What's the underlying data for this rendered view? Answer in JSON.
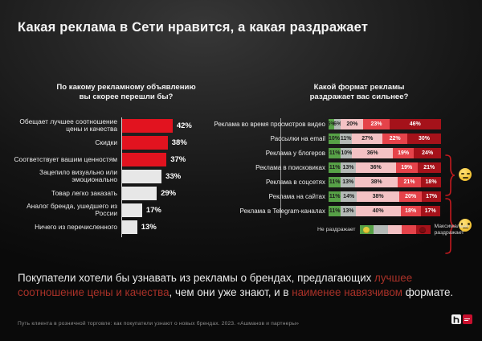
{
  "page_title": "Какая реклама в Сети нравится, а какая раздражает",
  "chart_data": [
    {
      "type": "bar",
      "orientation": "horizontal",
      "title": "По какому рекламному объявлению вы скорее перешли бы?",
      "title_lines": [
        "По какому рекламному объявлению",
        "вы скорее перешли бы?"
      ],
      "unit": "%",
      "categories": [
        "Обещает лучшее соотношение цены и качества",
        "Скидки",
        "Соответствует вашим ценностям",
        "Зацепило визуально или эмоционально",
        "Товар легко заказать",
        "Аналог бренда, ушедшего из России",
        "Ничего из перечисленного"
      ],
      "values": [
        42,
        38,
        37,
        33,
        29,
        17,
        13
      ],
      "value_labels": [
        "42%",
        "38%",
        "37%",
        "33%",
        "29%",
        "17%",
        "13%"
      ],
      "highlighted_bars": 3,
      "highlight_color": "#e2131f",
      "bar_color": "#e7e7e7",
      "xlim": [
        0,
        46
      ],
      "grid": false
    },
    {
      "type": "stacked-bar",
      "orientation": "horizontal",
      "title": "Какой формат рекламы раздражает вас сильнее?",
      "title_lines": [
        "Какой формат рекламы",
        "раздражает вас сильнее?"
      ],
      "unit": "%",
      "categories": [
        "Реклама во время просмотров видео",
        "Рассылки на email",
        "Реклама у блогеров",
        "Реклама в поисковиках",
        "Реклама в соцсетях",
        "Реклама на сайтах",
        "Реклама в Telegram-каналах"
      ],
      "rows": [
        {
          "values": [
            5,
            6,
            20,
            23,
            46
          ]
        },
        {
          "values": [
            10,
            11,
            27,
            22,
            30
          ]
        },
        {
          "values": [
            11,
            10,
            36,
            19,
            24
          ]
        },
        {
          "values": [
            11,
            13,
            36,
            19,
            21
          ]
        },
        {
          "values": [
            11,
            13,
            38,
            21,
            18
          ]
        },
        {
          "values": [
            11,
            14,
            38,
            20,
            17
          ]
        },
        {
          "values": [
            11,
            13,
            40,
            18,
            17
          ]
        }
      ],
      "segment_colors": [
        "#57a147",
        "#b5bab7",
        "#f4c2c4",
        "#e5434a",
        "#a5121a"
      ],
      "legend": {
        "left_label": "Не раздражает",
        "right_label": "Максимально раздражает"
      },
      "groups": [
        {
          "rows_from": 1,
          "rows_to": 3,
          "emoji": "unamused-face",
          "brace_color": "#c11a1f"
        },
        {
          "rows_from": 4,
          "rows_to": 7,
          "emoji": "neutral-face",
          "brace_color": "#c11a1f"
        }
      ]
    }
  ],
  "summary": {
    "parts": [
      {
        "text": "Покупатели хотели бы узнавать из рекламы о брендах, предлагающих ",
        "highlight": false
      },
      {
        "text": "лучшее соотношение цены и качества",
        "highlight": true
      },
      {
        "text": ", чем они уже знают, и в ",
        "highlight": false
      },
      {
        "text": "наименее навязчивом",
        "highlight": true
      },
      {
        "text": " формате.",
        "highlight": false
      }
    ],
    "highlight_color": "#a93128"
  },
  "footer": {
    "source": "Путь клиента в розничной торговле: как покупатели узнают о новых брендах. 2023. «Ашманов и партнеры»"
  }
}
